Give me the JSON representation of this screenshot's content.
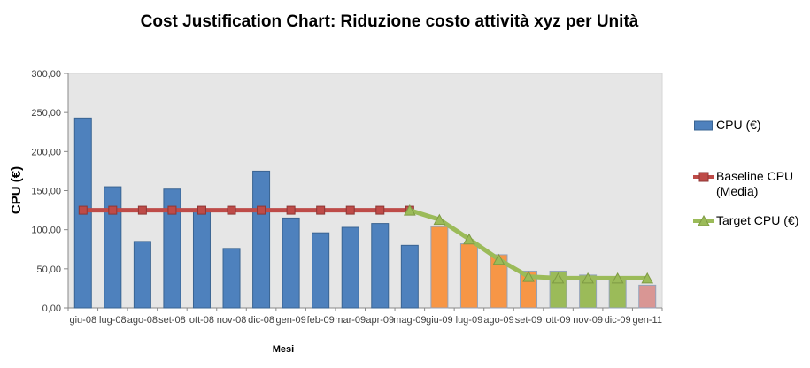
{
  "title": "Cost Justification Chart: Riduzione costo attività xyz per Unità",
  "y_axis_title": "CPU (€)",
  "x_axis_title": "Mesi",
  "legend": {
    "position": "right",
    "items": [
      {
        "label": "CPU (€)",
        "marker": "bar",
        "color": "#4E81BD",
        "border": "#3A6492"
      },
      {
        "label": "Baseline CPU (Media)",
        "marker": "line-square",
        "color": "#BE4B48",
        "border": "#8E3634"
      },
      {
        "label": "Target  CPU (€)",
        "marker": "line-triangle",
        "color": "#9BBB59",
        "border": "#7E9A43"
      }
    ]
  },
  "chart_data": {
    "type": "bar",
    "title": "Cost Justification Chart: Riduzione costo attività xyz per Unità",
    "xlabel": "Mesi",
    "ylabel": "CPU (€)",
    "ylim": [
      0,
      300
    ],
    "grid": false,
    "plot_background": "#E6E6E6",
    "categories": [
      "giu-08",
      "lug-08",
      "ago-08",
      "set-08",
      "ott-08",
      "nov-08",
      "dic-08",
      "gen-09",
      "feb-09",
      "mar-09",
      "apr-09",
      "mag-09",
      "giu-09",
      "lug-09",
      "ago-09",
      "set-09",
      "ott-09",
      "nov-09",
      "dic-09",
      "gen-11"
    ],
    "yticks": [
      {
        "value": 0,
        "label": "0,00"
      },
      {
        "value": 50,
        "label": "50,00"
      },
      {
        "value": 100,
        "label": "100,00"
      },
      {
        "value": 150,
        "label": "150,00"
      },
      {
        "value": 200,
        "label": "200,00"
      },
      {
        "value": 250,
        "label": "250,00"
      },
      {
        "value": 300,
        "label": "300,00"
      }
    ],
    "series": [
      {
        "name": "CPU (€)",
        "type": "bar",
        "values": [
          243,
          155,
          85,
          152,
          123,
          76,
          175,
          115,
          96,
          103,
          108,
          80,
          104,
          82,
          68,
          47,
          47,
          42,
          40,
          29
        ],
        "bar_fills": [
          "#4E81BD",
          "#4E81BD",
          "#4E81BD",
          "#4E81BD",
          "#4E81BD",
          "#4E81BD",
          "#4E81BD",
          "#4E81BD",
          "#4E81BD",
          "#4E81BD",
          "#4E81BD",
          "#4E81BD",
          "#F79646",
          "#F79646",
          "#F79646",
          "#F79646",
          "#9BBB59",
          "#9BBB59",
          "#9BBB59",
          "#D99694"
        ]
      },
      {
        "name": "Baseline CPU (Media)",
        "type": "line",
        "marker": "square",
        "color": "#BE4B48",
        "marker_border": "#8E3634",
        "values": [
          125,
          125,
          125,
          125,
          125,
          125,
          125,
          125,
          125,
          125,
          125,
          125,
          null,
          null,
          null,
          null,
          null,
          null,
          null,
          null
        ]
      },
      {
        "name": "Target CPU (€)",
        "type": "line",
        "marker": "triangle",
        "color": "#9BBB59",
        "marker_border": "#7E9A43",
        "values": [
          null,
          null,
          null,
          null,
          null,
          null,
          null,
          null,
          null,
          null,
          null,
          125,
          113,
          88,
          62,
          40,
          38,
          38,
          38,
          38
        ]
      }
    ]
  }
}
